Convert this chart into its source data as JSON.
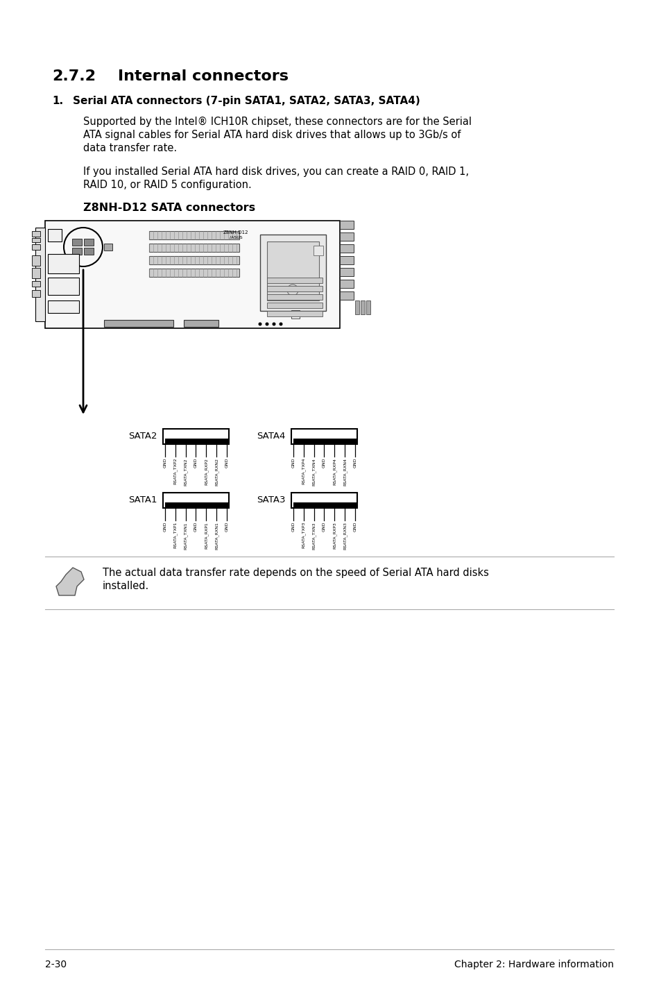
{
  "title_section_num": "2.7.2",
  "title_section_text": "Internal connectors",
  "item_number": "1.",
  "item_title": "Serial ATA connectors (7-pin SATA1, SATA2, SATA3, SATA4)",
  "para1_line1": "Supported by the Intel® ICH10R chipset, these connectors are for the Serial",
  "para1_line2": "ATA signal cables for Serial ATA hard disk drives that allows up to 3Gb/s of",
  "para1_line3": "data transfer rate.",
  "para2_line1": "If you installed Serial ATA hard disk drives, you can create a RAID 0, RAID 1,",
  "para2_line2": "RAID 10, or RAID 5 configuration.",
  "diagram_label": "Z8NH-D12 SATA connectors",
  "sata2_pins": [
    "GND",
    "RSATA_TXP2",
    "RSATA_TXN2",
    "GND",
    "RSATA_RXP2",
    "RSATA_RXN2",
    "GND"
  ],
  "sata4_pins": [
    "GND",
    "RSATA_TXP4",
    "RSATA_TXN4",
    "GND",
    "RSATA_RXP4",
    "RSATA_RXN4",
    "GND"
  ],
  "sata1_pins": [
    "GND",
    "RSATA_TXP1",
    "RSATA_TXN1",
    "GND",
    "RSATA_RXP1",
    "RSATA_RXN1",
    "GND"
  ],
  "sata3_pins": [
    "GND",
    "RSATA_TXP3",
    "RSATA_TXN3",
    "GND",
    "RSATA_RXP3",
    "RSATA_RXN3",
    "GND"
  ],
  "note_text_line1": "The actual data transfer rate depends on the speed of Serial ATA hard disks",
  "note_text_line2": "installed.",
  "footer_left": "2-30",
  "footer_right": "Chapter 2: Hardware information",
  "bg_color": "#ffffff",
  "text_color": "#000000"
}
